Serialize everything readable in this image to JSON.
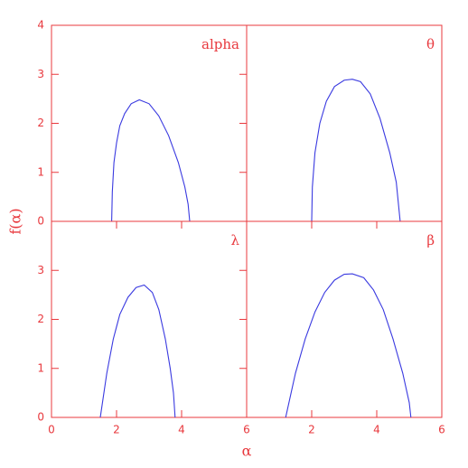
{
  "shared_axes": {
    "xlabel": "α",
    "ylabel": "f(α)"
  },
  "chart_data": [
    {
      "type": "line",
      "annotation": "alpha",
      "color": "#3a3ae0",
      "x": [
        1.85,
        1.87,
        1.92,
        2.0,
        2.1,
        2.25,
        2.45,
        2.7,
        3.0,
        3.3,
        3.6,
        3.9,
        4.1,
        4.2,
        4.25
      ],
      "values": [
        0,
        0.6,
        1.2,
        1.6,
        1.95,
        2.2,
        2.4,
        2.48,
        2.4,
        2.15,
        1.75,
        1.2,
        0.7,
        0.35,
        0
      ],
      "xlim": [
        0,
        6
      ],
      "ylim": [
        0,
        4
      ],
      "xticks": [],
      "yticks": [
        0,
        1,
        2,
        3,
        4
      ]
    },
    {
      "type": "line",
      "annotation": "θ",
      "color": "#3a3ae0",
      "x": [
        2.0,
        2.02,
        2.1,
        2.25,
        2.45,
        2.7,
        3.0,
        3.25,
        3.5,
        3.8,
        4.1,
        4.4,
        4.6,
        4.72
      ],
      "values": [
        0,
        0.7,
        1.4,
        2.0,
        2.45,
        2.75,
        2.88,
        2.9,
        2.85,
        2.6,
        2.1,
        1.4,
        0.8,
        0
      ],
      "xlim": [
        0,
        6
      ],
      "ylim": [
        0,
        4
      ],
      "xticks": [],
      "yticks": []
    },
    {
      "type": "line",
      "annotation": "λ",
      "color": "#3a3ae0",
      "x": [
        1.5,
        1.7,
        1.9,
        2.1,
        2.35,
        2.6,
        2.85,
        3.1,
        3.3,
        3.5,
        3.65,
        3.75,
        3.8
      ],
      "values": [
        0,
        0.9,
        1.6,
        2.1,
        2.45,
        2.65,
        2.7,
        2.55,
        2.2,
        1.6,
        1.0,
        0.5,
        0
      ],
      "xlim": [
        0,
        6
      ],
      "ylim": [
        0,
        4
      ],
      "xticks": [
        0,
        2,
        4,
        6
      ],
      "yticks": [
        0,
        1,
        2,
        3
      ]
    },
    {
      "type": "line",
      "annotation": "β",
      "color": "#3a3ae0",
      "x": [
        1.2,
        1.5,
        1.8,
        2.1,
        2.4,
        2.7,
        3.0,
        3.25,
        3.6,
        3.9,
        4.2,
        4.5,
        4.8,
        5.0,
        5.05
      ],
      "values": [
        0,
        0.9,
        1.6,
        2.15,
        2.55,
        2.8,
        2.92,
        2.93,
        2.85,
        2.6,
        2.2,
        1.6,
        0.9,
        0.3,
        0
      ],
      "xlim": [
        0,
        6
      ],
      "ylim": [
        0,
        4
      ],
      "xticks": [
        2,
        4,
        6
      ],
      "yticks": []
    }
  ]
}
